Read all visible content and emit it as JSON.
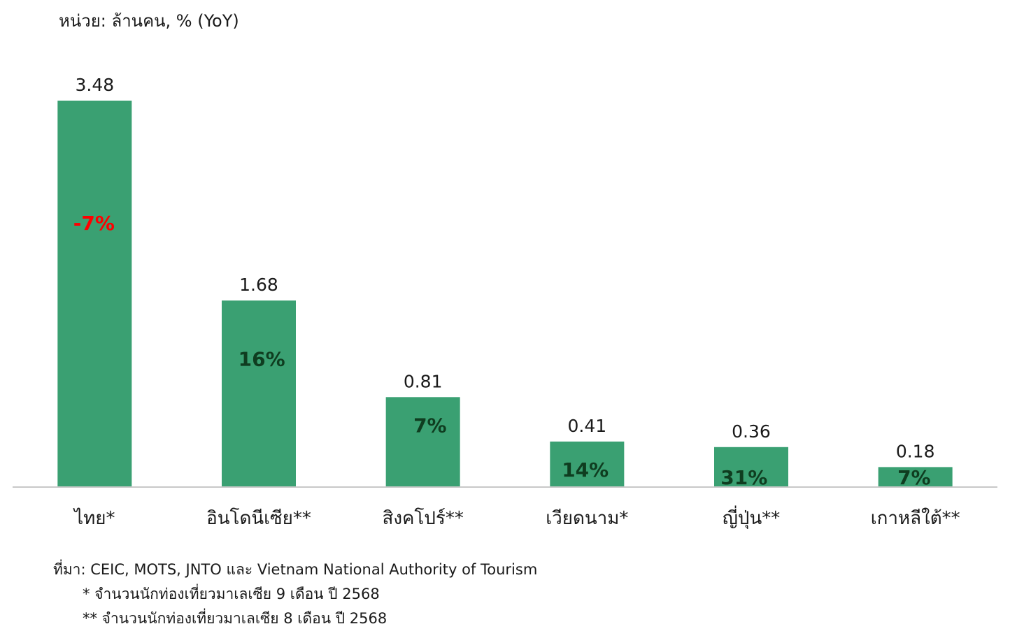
{
  "unit_label": "หน่วย: ล้านคน, % (YoY)",
  "colors": {
    "bar": "#3aa072",
    "negative_label": "#ff0000",
    "positive_label": "#0f3d20",
    "axis": "#c8c8c8"
  },
  "chart_data": {
    "type": "bar",
    "categories": [
      "ไทย*",
      "อินโดนีเซีย**",
      "สิงคโปร์**",
      "เวียดนาม*",
      "ญี่ปุ่น**",
      "เกาหลีใต้**"
    ],
    "values": [
      3.48,
      1.68,
      0.81,
      0.41,
      0.36,
      0.18
    ],
    "value_labels": [
      "3.48",
      "1.68",
      "0.81",
      "0.41",
      "0.36",
      "0.18"
    ],
    "yoy_labels": [
      "-7%",
      "16%",
      "7%",
      "14%",
      "31%",
      "7%"
    ],
    "yoy_values": [
      -7,
      16,
      7,
      14,
      31,
      7
    ],
    "ylim": [
      0,
      3.48
    ],
    "grid": false,
    "legend": "none"
  },
  "notes": {
    "source": "ที่มา: CEIC, MOTS, JNTO และ  Vietnam National Authority of Tourism",
    "note1": "* จำนวนนักท่องเที่ยวมาเลเซีย 9 เดือน ปี 2568",
    "note2": "** จำนวนนักท่องเที่ยวมาเลเซีย 8 เดือน ปี 2568"
  }
}
